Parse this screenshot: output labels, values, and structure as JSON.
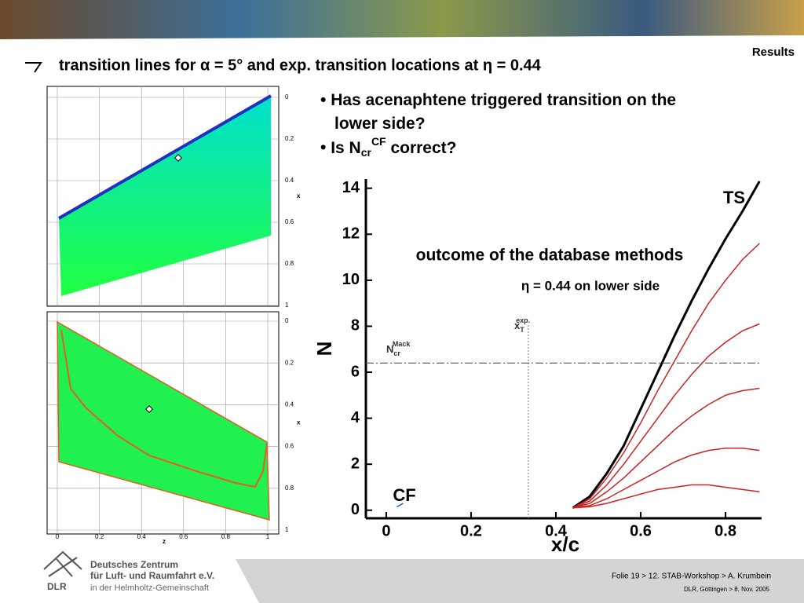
{
  "header": {
    "section": "Results",
    "title": "transition lines for α = 5° and exp. transition locations at η = 0.44"
  },
  "bullets": {
    "first": "Has acenaphtene triggered transition on the lower side?",
    "second": {
      "before": "Is N",
      "sub": "cr",
      "sup": "CF",
      "after": " correct?"
    }
  },
  "wing_plots": {
    "xticks": [
      0,
      0.2,
      0.4,
      0.6,
      0.8,
      1
    ],
    "xlabel": "z",
    "yticks": [
      0,
      0.2,
      0.4,
      0.6,
      0.8,
      1
    ],
    "ylabel": "x"
  },
  "chart_data": {
    "type": "line",
    "xlabel": "x/c",
    "ylabel": "N",
    "xlim": [
      -0.048,
      0.885
    ],
    "ylim": [
      -0.35,
      14.4
    ],
    "xticks": [
      0,
      0.2,
      0.4,
      0.6,
      0.8
    ],
    "yticks": [
      0,
      2,
      4,
      6,
      8,
      10,
      12,
      14
    ],
    "annotations": {
      "ts": "TS",
      "cf": "CF",
      "methods": "outcome of the database methods",
      "eta": "η = 0.44 on lower side"
    },
    "ncr": {
      "value": 6.4,
      "label": "N",
      "sub": "cr",
      "sup": "Mack"
    },
    "xt": {
      "value": 0.335,
      "label": "x",
      "sub": "T",
      "sup": "exp."
    },
    "series": [
      {
        "color": "#000000",
        "x": [
          0.44,
          0.48,
          0.52,
          0.56,
          0.6,
          0.64,
          0.68,
          0.72,
          0.76,
          0.8,
          0.84,
          0.88
        ],
        "values": [
          0.1,
          0.6,
          1.6,
          2.8,
          4.4,
          6.0,
          7.6,
          9.1,
          10.5,
          11.8,
          13.0,
          14.3
        ]
      },
      {
        "color": "#cc2222",
        "x": [
          0.44,
          0.48,
          0.52,
          0.56,
          0.6,
          0.64,
          0.68,
          0.72,
          0.76,
          0.8,
          0.84,
          0.88
        ],
        "values": [
          0.1,
          0.5,
          1.4,
          2.5,
          3.8,
          5.2,
          6.5,
          7.8,
          9.0,
          10.0,
          10.9,
          11.6
        ]
      },
      {
        "color": "#cc2222",
        "x": [
          0.44,
          0.48,
          0.52,
          0.56,
          0.6,
          0.64,
          0.68,
          0.72,
          0.76,
          0.8,
          0.84,
          0.88
        ],
        "values": [
          0.1,
          0.4,
          1.1,
          2.0,
          3.0,
          4.0,
          5.0,
          5.9,
          6.7,
          7.3,
          7.8,
          8.1
        ]
      },
      {
        "color": "#cc2222",
        "x": [
          0.44,
          0.48,
          0.52,
          0.56,
          0.6,
          0.64,
          0.68,
          0.72,
          0.76,
          0.8,
          0.84,
          0.88
        ],
        "values": [
          0.1,
          0.3,
          0.8,
          1.4,
          2.1,
          2.8,
          3.5,
          4.1,
          4.6,
          5.0,
          5.2,
          5.3
        ]
      },
      {
        "color": "#cc2222",
        "x": [
          0.44,
          0.48,
          0.52,
          0.56,
          0.6,
          0.64,
          0.68,
          0.72,
          0.76,
          0.8,
          0.84,
          0.88
        ],
        "values": [
          0.1,
          0.2,
          0.5,
          0.9,
          1.3,
          1.7,
          2.1,
          2.4,
          2.6,
          2.7,
          2.7,
          2.6
        ]
      },
      {
        "color": "#cc2222",
        "x": [
          0.44,
          0.48,
          0.52,
          0.56,
          0.6,
          0.64,
          0.68,
          0.72,
          0.76,
          0.8,
          0.84,
          0.88
        ],
        "values": [
          0.1,
          0.15,
          0.3,
          0.5,
          0.7,
          0.9,
          1.0,
          1.1,
          1.1,
          1.0,
          0.9,
          0.8
        ]
      },
      {
        "color": "#2255dd",
        "x": [
          0.025,
          0.04
        ],
        "values": [
          0.15,
          0.3
        ]
      }
    ]
  },
  "footer": {
    "org1": "Deutsches Zentrum",
    "org2": "für Luft- und Raumfahrt e.V.",
    "org3": "in der Helmholtz-Gemeinschaft",
    "logo": "DLR",
    "slide": "Folie 19 > 12. STAB-Workshop > A. Krumbein",
    "place": "DLR, Göttingen > 8. Nov. 2005"
  }
}
